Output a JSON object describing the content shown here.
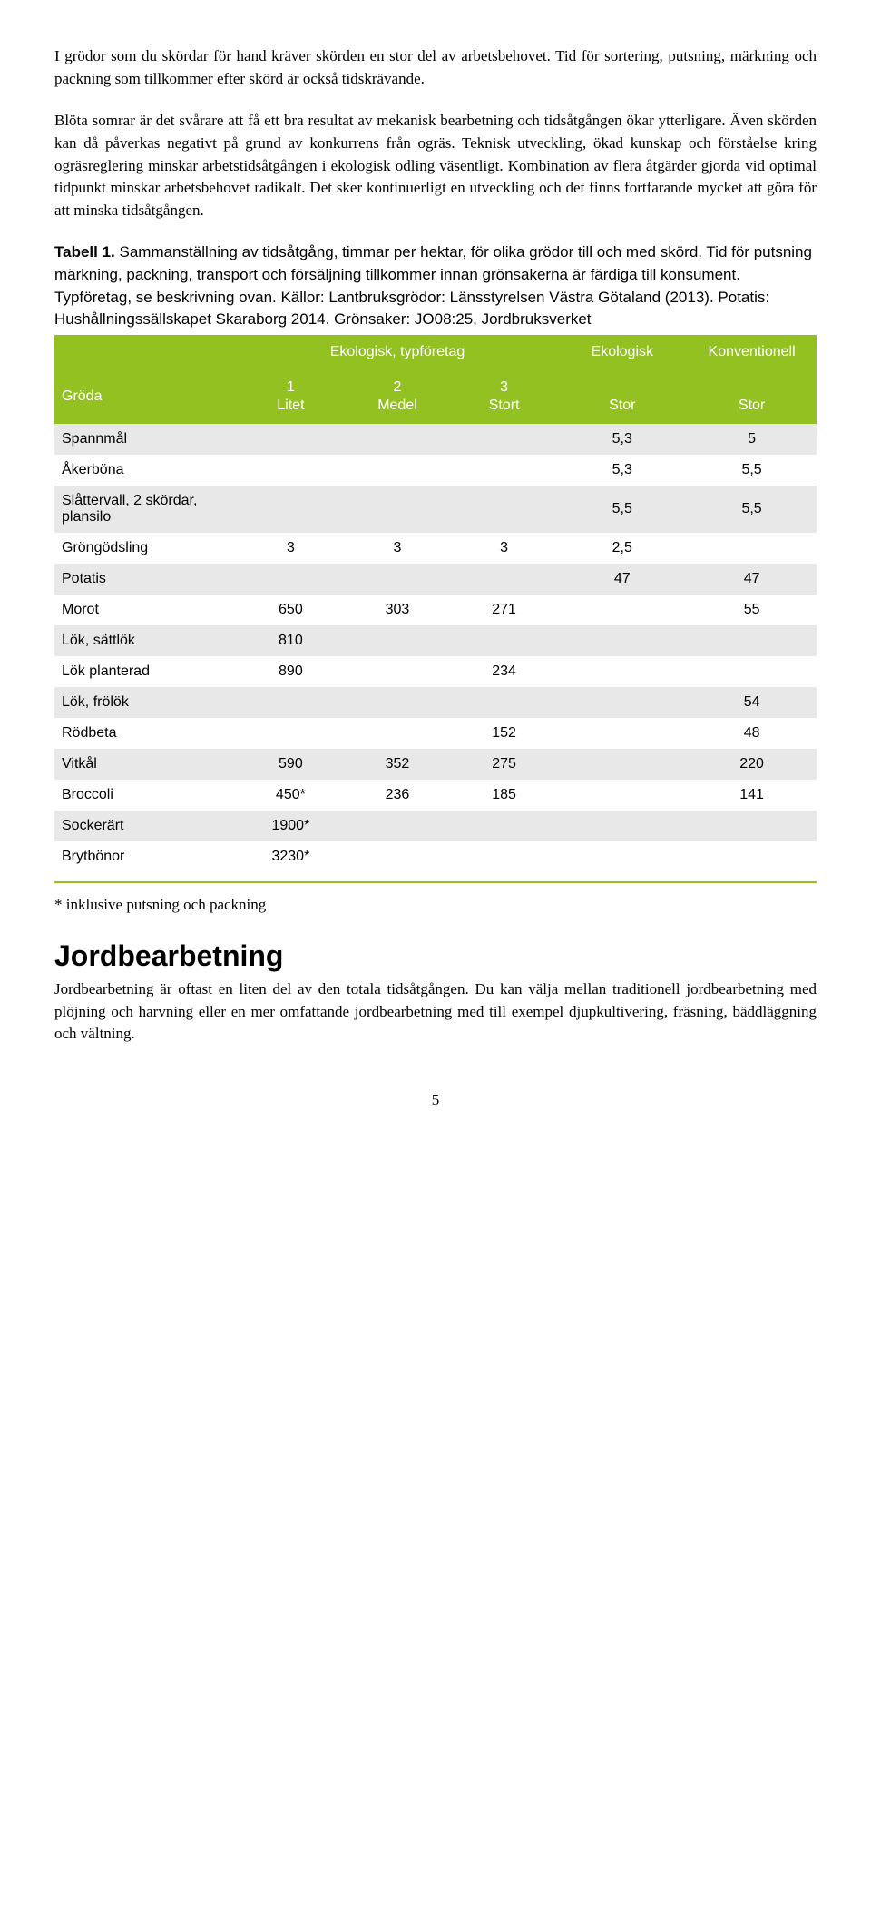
{
  "para1": "I grödor som du skördar för hand kräver skörden en stor del av arbetsbehovet. Tid för sortering, putsning, märkning och packning som tillkommer efter skörd är också tidskrävande.",
  "para2": "Blöta somrar är det svårare att få ett bra resultat av mekanisk bearbetning och tidsåtgången ökar ytterligare. Även skörden kan då påverkas negativt på grund av konkurrens från ogräs. Teknisk utveckling, ökad kunskap och förståelse kring ogräsreglering minskar arbetstidsåtgången i ekologisk odling väsentligt. Kombination av flera åtgärder gjorda vid optimal tidpunkt minskar arbetsbehovet radikalt. Det sker kontinuerligt en utveckling och det finns fortfarande mycket att göra för att minska tidsåtgången.",
  "caption_bold": "Tabell 1.",
  "caption_rest": " Sammanställning av tidsåtgång, timmar per hektar, för olika grödor till och med skörd. Tid för putsning märkning, packning, transport och försäljning tillkommer innan grönsakerna är färdiga till konsument. Typföretag, se beskrivning ovan. Källor: Lantbruksgrödor: Länsstyrelsen Västra Götaland (2013). Potatis: Hushållningssällskapet Skaraborg 2014. Grönsaker: JO08:25, Jordbruksverket",
  "superhead": {
    "c1": "",
    "c2": "Ekologisk, typföretag",
    "c3": "Ekologisk",
    "c4": "Konventionell"
  },
  "subhead": {
    "crop": "Gröda",
    "c1a": "1",
    "c1b": "Litet",
    "c2a": "2",
    "c2b": "Medel",
    "c3a": "3",
    "c3b": "Stort",
    "c4": "Stor",
    "c5": "Stor"
  },
  "rows": [
    {
      "crop": "Spannmål",
      "c1": "",
      "c2": "",
      "c3": "",
      "c4": "5,3",
      "c5": "5"
    },
    {
      "crop": "Åkerböna",
      "c1": "",
      "c2": "",
      "c3": "",
      "c4": "5,3",
      "c5": "5,5"
    },
    {
      "crop": "Slåttervall, 2 skördar, plansilo",
      "c1": "",
      "c2": "",
      "c3": "",
      "c4": "5,5",
      "c5": "5,5"
    },
    {
      "crop": "Gröngödsling",
      "c1": "3",
      "c2": "3",
      "c3": "3",
      "c4": "2,5",
      "c5": ""
    },
    {
      "crop": "Potatis",
      "c1": "",
      "c2": "",
      "c3": "",
      "c4": "47",
      "c5": "47"
    },
    {
      "crop": "Morot",
      "c1": "650",
      "c2": "303",
      "c3": "271",
      "c4": "",
      "c5": "55"
    },
    {
      "crop": "Lök, sättlök",
      "c1": "810",
      "c2": "",
      "c3": "",
      "c4": "",
      "c5": ""
    },
    {
      "crop": "Lök planterad",
      "c1": "890",
      "c2": "",
      "c3": "234",
      "c4": "",
      "c5": ""
    },
    {
      "crop": "Lök, frölök",
      "c1": "",
      "c2": "",
      "c3": "",
      "c4": "",
      "c5": "54"
    },
    {
      "crop": "Rödbeta",
      "c1": "",
      "c2": "",
      "c3": "152",
      "c4": "",
      "c5": "48"
    },
    {
      "crop": "Vitkål",
      "c1": "590",
      "c2": "352",
      "c3": "275",
      "c4": "",
      "c5": "220"
    },
    {
      "crop": "Broccoli",
      "c1": "450*",
      "c2": "236",
      "c3": "185",
      "c4": "",
      "c5": "141"
    },
    {
      "crop": "Sockerärt",
      "c1": "1900*",
      "c2": "",
      "c3": "",
      "c4": "",
      "c5": ""
    },
    {
      "crop": "Brytbönor",
      "c1": "3230*",
      "c2": "",
      "c3": "",
      "c4": "",
      "c5": ""
    }
  ],
  "footnote": "* inklusive putsning och packning",
  "section_title": "Jordbearbetning",
  "para3": "Jordbearbetning är oftast en liten del av den totala tidsåtgången. Du kan välja mellan traditionell jordbearbetning med plöjning och harvning eller en mer omfattande jordbearbetning med till exempel djupkultivering, fräsning, bäddläggning och vältning.",
  "page_number": "5"
}
